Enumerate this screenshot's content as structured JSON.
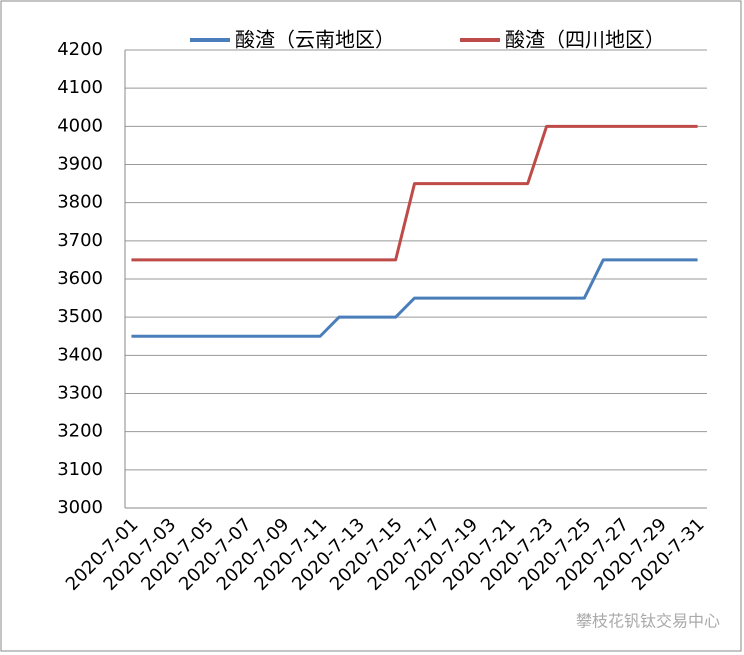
{
  "chart_data": {
    "type": "line",
    "categories": [
      "2020-7-01",
      null,
      "2020-7-03",
      null,
      "2020-7-05",
      null,
      "2020-7-07",
      null,
      "2020-7-09",
      null,
      "2020-7-11",
      null,
      "2020-7-13",
      null,
      "2020-7-15",
      null,
      "2020-7-17",
      null,
      "2020-7-19",
      null,
      "2020-7-21",
      null,
      "2020-7-23",
      null,
      "2020-7-25",
      null,
      "2020-7-27",
      null,
      "2020-7-29",
      null,
      "2020-7-31"
    ],
    "series": [
      {
        "name": "酸渣（云南地区）",
        "color": "#4a7ebb",
        "values": [
          3450,
          3450,
          3450,
          3450,
          3450,
          3450,
          3450,
          3450,
          3450,
          3450,
          3450,
          3500,
          3500,
          3500,
          3500,
          3550,
          3550,
          3550,
          3550,
          3550,
          3550,
          3550,
          3550,
          3550,
          3550,
          3650,
          3650,
          3650,
          3650,
          3650,
          3650
        ]
      },
      {
        "name": "酸渣（四川地区）",
        "color": "#be4b48",
        "values": [
          3650,
          3650,
          3650,
          3650,
          3650,
          3650,
          3650,
          3650,
          3650,
          3650,
          3650,
          3650,
          3650,
          3650,
          3650,
          3850,
          3850,
          3850,
          3850,
          3850,
          3850,
          3850,
          4000,
          4000,
          4000,
          4000,
          4000,
          4000,
          4000,
          4000,
          4000
        ]
      }
    ],
    "ylim": [
      3000,
      4200
    ],
    "yticks": [
      3000,
      3100,
      3200,
      3300,
      3400,
      3500,
      3600,
      3700,
      3800,
      3900,
      4000,
      4100,
      4200
    ],
    "grid": true,
    "legend": "top",
    "watermark": "攀枝花钒钛交易中心"
  }
}
